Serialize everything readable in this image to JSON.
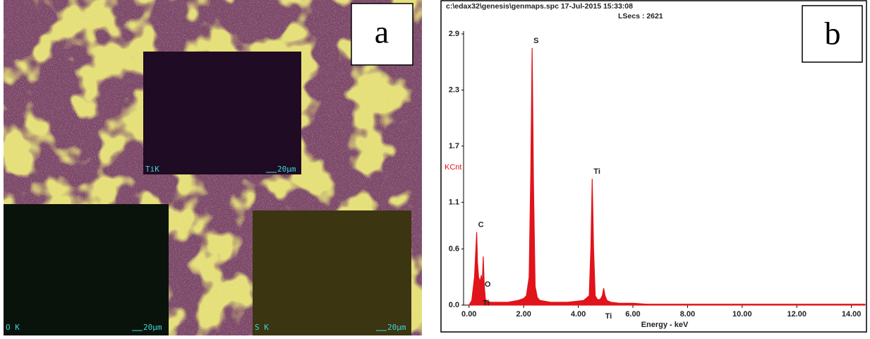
{
  "panel_a": {
    "label": "a",
    "maps": [
      {
        "element": "TiK",
        "scale": "20µm"
      },
      {
        "element": "O K",
        "scale": "20µm"
      },
      {
        "element": "S K",
        "scale": "20µm"
      }
    ]
  },
  "panel_b": {
    "label": "b"
  },
  "chart_data": {
    "type": "area",
    "title": "c:\\edax32\\genesis\\genmaps.spc  17-Jul-2015 15:33:08",
    "subtitle": "LSecs : 2621",
    "x_label": "Energy - keV",
    "y_label": "KCnt",
    "x": [
      0.0,
      0.1,
      0.2,
      0.25,
      0.28,
      0.31,
      0.35,
      0.4,
      0.45,
      0.48,
      0.52,
      0.56,
      0.6,
      0.7,
      0.8,
      1.0,
      1.2,
      1.4,
      1.6,
      1.8,
      2.0,
      2.1,
      2.2,
      2.26,
      2.31,
      2.36,
      2.42,
      2.5,
      2.6,
      2.8,
      3.0,
      3.3,
      3.6,
      3.9,
      4.2,
      4.4,
      4.46,
      4.51,
      4.56,
      4.62,
      4.7,
      4.8,
      4.88,
      4.93,
      4.98,
      5.05,
      5.2,
      5.5,
      6.0,
      6.5,
      7.0,
      8.0,
      9.0,
      10.0,
      11.0,
      12.0,
      13.0,
      14.0,
      14.5
    ],
    "series": [
      {
        "color": "#e0141a",
        "values": [
          0,
          0.05,
          0.3,
          0.6,
          0.78,
          0.45,
          0.3,
          0.25,
          0.32,
          0.2,
          0.52,
          0.2,
          0.06,
          0.04,
          0.03,
          0.03,
          0.03,
          0.03,
          0.04,
          0.05,
          0.07,
          0.1,
          0.3,
          1.4,
          2.75,
          1.3,
          0.2,
          0.08,
          0.05,
          0.04,
          0.03,
          0.03,
          0.03,
          0.04,
          0.05,
          0.1,
          0.6,
          1.35,
          0.6,
          0.1,
          0.06,
          0.06,
          0.1,
          0.18,
          0.1,
          0.05,
          0.03,
          0.02,
          0.02,
          0.01,
          0.01,
          0.01,
          0.01,
          0.01,
          0.01,
          0.01,
          0.01,
          0.01,
          0.01
        ]
      }
    ],
    "annotations": [
      {
        "text": "C",
        "x": 0.28
      },
      {
        "text": "O",
        "x": 0.52
      },
      {
        "text": "Ti",
        "x": 0.45
      },
      {
        "text": "S",
        "x": 2.31
      },
      {
        "text": "Ti",
        "x": 4.51
      },
      {
        "text": "Ti",
        "x": 4.93
      }
    ],
    "xlim": [
      -0.2,
      14.5
    ],
    "ylim": [
      0,
      2.9
    ],
    "xticks": [
      {
        "value": 0,
        "label": "0.00"
      },
      {
        "value": 2,
        "label": "2.00"
      },
      {
        "value": 4,
        "label": "4.00"
      },
      {
        "value": 6,
        "label": "6.00"
      },
      {
        "value": 8,
        "label": "8.00"
      },
      {
        "value": 10,
        "label": "10.00"
      },
      {
        "value": 12,
        "label": "12.00"
      },
      {
        "value": 14,
        "label": "14.00"
      }
    ],
    "yticks": [
      {
        "value": 0,
        "label": "0.0"
      },
      0.6,
      1.1,
      1.7,
      2.3,
      2.9
    ],
    "y_label_color": "#e0141a",
    "grid": false
  }
}
